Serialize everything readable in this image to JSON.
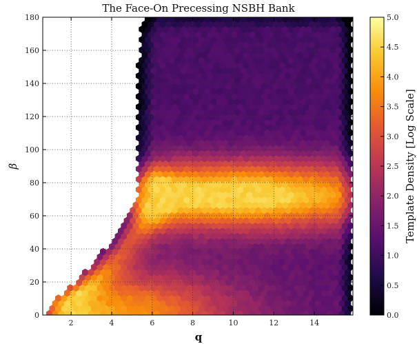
{
  "chart_data": {
    "type": "heatmap",
    "title": "The Face-On Precessing NSBH Bank",
    "xlabel": "q",
    "ylabel": "β",
    "xlim": [
      0.6,
      15.9
    ],
    "ylim": [
      0,
      180
    ],
    "xticks": [
      2,
      4,
      6,
      8,
      10,
      12,
      14
    ],
    "yticks": [
      0,
      20,
      40,
      60,
      80,
      100,
      120,
      140,
      160,
      180
    ],
    "grid": true,
    "colormap": "inferno",
    "colorbar": {
      "label": "Template Density [Log Scale]",
      "range": [
        0.0,
        5.0
      ],
      "ticks": [
        0.0,
        0.5,
        1.0,
        1.5,
        2.0,
        2.5,
        3.0,
        3.5,
        4.0,
        4.5,
        5.0
      ],
      "tick_labels": [
        "0.0",
        "0.5",
        "1.0",
        "1.5",
        "2.0",
        "2.5",
        "3.0",
        "3.5",
        "4.0",
        "4.5",
        "5.0"
      ]
    },
    "density_features": {
      "boundary_beta_vs_q": [
        [
          0.9,
          0
        ],
        [
          1.0,
          8
        ],
        [
          2.0,
          18
        ],
        [
          3.0,
          30
        ],
        [
          4.0,
          45
        ],
        [
          4.8,
          58
        ],
        [
          5.2,
          72
        ],
        [
          5.3,
          100
        ],
        [
          5.3,
          150
        ],
        [
          5.5,
          180
        ]
      ],
      "high_density_band_beta": [
        60,
        85
      ],
      "peak_value": 4.5,
      "background_value": 1.1
    }
  }
}
